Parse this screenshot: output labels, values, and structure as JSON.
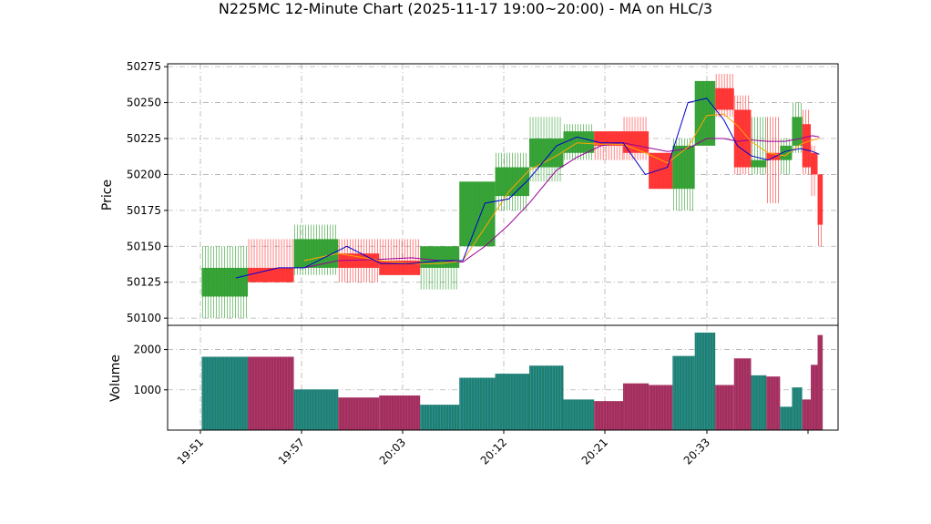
{
  "chart_data": {
    "type": "candlestick-with-volume",
    "title": "N225MC 12-Minute Chart (2025-11-17 19:00~20:00) - MA on HLC/3",
    "price_panel": {
      "ylabel": "Price",
      "ylim": [
        50095,
        50277
      ],
      "yticks": [
        50100,
        50125,
        50150,
        50175,
        50200,
        50225,
        50250,
        50275
      ],
      "grid": true
    },
    "volume_panel": {
      "ylabel": "Volume",
      "ylim": [
        0,
        2600
      ],
      "yticks": [
        1000,
        2000
      ],
      "grid": true
    },
    "xlim": [
      "19:49.0",
      "20:41.3"
    ],
    "xticks": [
      "19:51",
      "19:57",
      "20:03",
      "20:12",
      "20:21",
      "20:33"
    ],
    "tick_positions_min": [
      51,
      57,
      63,
      69,
      75,
      81
    ],
    "colors": {
      "up": "#2e9e2e",
      "down": "#ff2d2d",
      "ma_fast": "#0000cc",
      "ma_mid": "#ffa500",
      "ma_slow": "#990099",
      "vol_up": "#1f7f6a",
      "vol_down": "#a0305a"
    },
    "candles": [
      {
        "t0": 51.0,
        "t1": 53.7,
        "open": 50115,
        "high": 50150,
        "low": 50100,
        "close": 50135,
        "volume": 1820
      },
      {
        "t0": 53.7,
        "t1": 56.4,
        "open": 50135,
        "high": 50155,
        "low": 50125,
        "close": 50125,
        "volume": 1820
      },
      {
        "t0": 56.4,
        "t1": 59.0,
        "open": 50135,
        "high": 50165,
        "low": 50130,
        "close": 50155,
        "volume": 1010
      },
      {
        "t0": 59.0,
        "t1": 61.4,
        "open": 50145,
        "high": 50155,
        "low": 50125,
        "close": 50135,
        "volume": 810
      },
      {
        "t0": 61.4,
        "t1": 63.8,
        "open": 50140,
        "high": 50155,
        "low": 50130,
        "close": 50130,
        "volume": 860
      },
      {
        "t0": 63.8,
        "t1": 66.1,
        "open": 50135,
        "high": 50150,
        "low": 50120,
        "close": 50150,
        "volume": 630
      },
      {
        "t0": 66.1,
        "t1": 68.2,
        "open": 50150,
        "high": 50195,
        "low": 50150,
        "close": 50195,
        "volume": 1300
      },
      {
        "t0": 68.2,
        "t1": 70.2,
        "open": 50185,
        "high": 50215,
        "low": 50175,
        "close": 50205,
        "volume": 1400
      },
      {
        "t0": 70.2,
        "t1": 72.2,
        "open": 50205,
        "high": 50240,
        "low": 50195,
        "close": 50225,
        "volume": 1600
      },
      {
        "t0": 72.2,
        "t1": 74.0,
        "open": 50215,
        "high": 50235,
        "low": 50210,
        "close": 50230,
        "volume": 760
      },
      {
        "t0": 74.0,
        "t1": 75.7,
        "open": 50230,
        "high": 50230,
        "low": 50210,
        "close": 50220,
        "volume": 720
      },
      {
        "t0": 75.7,
        "t1": 77.2,
        "open": 50230,
        "high": 50240,
        "low": 50210,
        "close": 50215,
        "volume": 1160
      },
      {
        "t0": 77.2,
        "t1": 78.6,
        "open": 50215,
        "high": 50215,
        "low": 50190,
        "close": 50190,
        "volume": 1120
      },
      {
        "t0": 78.6,
        "t1": 79.9,
        "open": 50190,
        "high": 50225,
        "low": 50175,
        "close": 50220,
        "volume": 1840
      },
      {
        "t0": 79.9,
        "t1": 81.1,
        "open": 50220,
        "high": 50265,
        "low": 50220,
        "close": 50265,
        "volume": 2420
      },
      {
        "t0": 81.1,
        "t1": 82.2,
        "open": 50260,
        "high": 50270,
        "low": 50240,
        "close": 50245,
        "volume": 1120
      },
      {
        "t0": 82.2,
        "t1": 83.2,
        "open": 50245,
        "high": 50255,
        "low": 50200,
        "close": 50205,
        "volume": 1780
      },
      {
        "t0": 83.2,
        "t1": 84.1,
        "open": 50205,
        "high": 50240,
        "low": 50200,
        "close": 50210,
        "volume": 1360
      },
      {
        "t0": 84.1,
        "t1": 84.9,
        "open": 50215,
        "high": 50240,
        "low": 50180,
        "close": 50210,
        "volume": 1330
      },
      {
        "t0": 84.9,
        "t1": 85.6,
        "open": 50210,
        "high": 50225,
        "low": 50200,
        "close": 50220,
        "volume": 580
      },
      {
        "t0": 85.6,
        "t1": 86.2,
        "open": 50220,
        "high": 50250,
        "low": 50215,
        "close": 50240,
        "volume": 1060
      },
      {
        "t0": 86.2,
        "t1": 86.7,
        "open": 50235,
        "high": 50245,
        "low": 50200,
        "close": 50205,
        "volume": 760
      },
      {
        "t0": 86.7,
        "t1": 87.1,
        "open": 50215,
        "high": 50220,
        "low": 50185,
        "close": 50200,
        "volume": 1620
      },
      {
        "t0": 87.1,
        "t1": 87.4,
        "open": 50200,
        "high": 50200,
        "low": 50150,
        "close": 50165,
        "volume": 2360
      }
    ],
    "ma_fast": {
      "x": [
        53.0,
        55.5,
        57.0,
        59.5,
        61.5,
        63.3,
        65.0,
        66.3,
        67.6,
        69.0,
        70.2,
        71.8,
        73.0,
        74.4,
        75.7,
        77.0,
        78.3,
        79.5,
        80.6,
        81.6,
        82.4,
        83.2,
        84.2,
        85.2,
        86.1,
        86.8,
        87.2
      ],
      "y": [
        50128,
        50135,
        50135,
        50150,
        50138,
        50138,
        50140,
        50140,
        50180,
        50183,
        50197,
        50220,
        50226,
        50222,
        50222,
        50200,
        50205,
        50250,
        50253,
        50238,
        50220,
        50213,
        50210,
        50216,
        50218,
        50216,
        50214
      ]
    },
    "ma_mid": {
      "x": [
        57.0,
        59.0,
        61.5,
        63.3,
        65.0,
        66.3,
        67.6,
        69.0,
        70.2,
        71.8,
        73.0,
        74.4,
        75.7,
        77.0,
        78.3,
        79.5,
        80.6,
        81.6,
        82.4,
        83.2,
        84.2,
        85.2,
        86.1,
        86.8,
        87.2
      ],
      "y": [
        50140,
        50145,
        50140,
        50138,
        50138,
        50140,
        50163,
        50188,
        50203,
        50213,
        50222,
        50221,
        50221,
        50215,
        50208,
        50219,
        50241,
        50242,
        50234,
        50223,
        50215,
        50213,
        50221,
        50224,
        50225
      ]
    },
    "ma_slow": {
      "x": [
        57.0,
        59.0,
        61.5,
        63.3,
        65.0,
        66.3,
        67.6,
        69.0,
        70.2,
        71.8,
        73.0,
        74.4,
        75.7,
        77.0,
        78.3,
        79.5,
        80.6,
        81.6,
        82.4,
        83.2,
        84.2,
        85.2,
        86.1,
        86.8,
        87.2
      ],
      "y": [
        50135,
        50140,
        50141,
        50142,
        50140,
        50139,
        50150,
        50165,
        50180,
        50203,
        50212,
        50220,
        50222,
        50219,
        50216,
        50218,
        50225,
        50225,
        50223,
        50224,
        50223,
        50223,
        50225,
        50227,
        50226
      ]
    }
  }
}
